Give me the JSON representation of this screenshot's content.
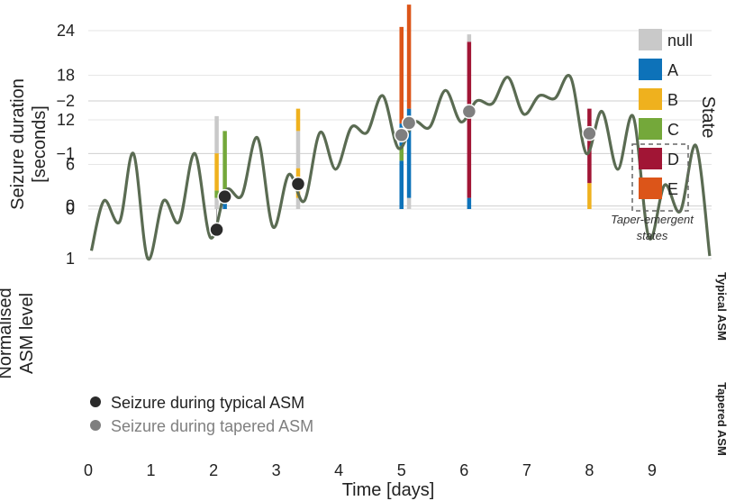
{
  "chart_data": [
    {
      "type": "bar",
      "stacked": true,
      "ylabel": "Seizure duration\n[seconds]",
      "yticks": [
        0,
        6,
        12,
        18,
        24
      ],
      "ylim": [
        -0.5,
        27.5
      ],
      "grid": true,
      "legend_title": "State",
      "legend_placement": "right",
      "categories": [
        "null",
        "A",
        "B",
        "C",
        "D",
        "E"
      ],
      "colors": {
        "null": "#c9c9c9",
        "A": "#0d72b9",
        "B": "#efb11e",
        "C": "#74a83a",
        "D": "#a11535",
        "E": "#dc5519"
      },
      "taper_emergent_states": [
        "D",
        "E"
      ],
      "taper_emergent_label": "Taper-emergent\nstates",
      "seizures": [
        {
          "day": 2.05,
          "segments": [
            {
              "state": "null",
              "value": 1.5
            },
            {
              "state": "C",
              "value": 1.0
            },
            {
              "state": "B",
              "value": 5.0
            },
            {
              "state": "null",
              "value": 5.0
            }
          ]
        },
        {
          "day": 2.18,
          "segments": [
            {
              "state": "A",
              "value": 1.0
            },
            {
              "state": "C",
              "value": 9.5
            }
          ]
        },
        {
          "day": 3.35,
          "segments": [
            {
              "state": "null",
              "value": 1.5
            },
            {
              "state": "B",
              "value": 4.0
            },
            {
              "state": "null",
              "value": 5.0
            },
            {
              "state": "B",
              "value": 3.0
            }
          ]
        },
        {
          "day": 5.0,
          "segments": [
            {
              "state": "A",
              "value": 6.5
            },
            {
              "state": "C",
              "value": 2.0
            },
            {
              "state": "A",
              "value": 3.0
            },
            {
              "state": "E",
              "value": 13.0
            }
          ]
        },
        {
          "day": 5.12,
          "segments": [
            {
              "state": "null",
              "value": 1.5
            },
            {
              "state": "A",
              "value": 12.0
            },
            {
              "state": "E",
              "value": 14.0
            }
          ]
        },
        {
          "day": 6.08,
          "segments": [
            {
              "state": "A",
              "value": 1.5
            },
            {
              "state": "D",
              "value": 21.0
            },
            {
              "state": "null",
              "value": 1.0
            }
          ]
        },
        {
          "day": 8.0,
          "segments": [
            {
              "state": "B",
              "value": 3.5
            },
            {
              "state": "D",
              "value": 10.0
            }
          ]
        }
      ]
    },
    {
      "type": "line",
      "xlabel": "Time [days]",
      "ylabel": "Normalised\nASM level",
      "xticks": [
        0,
        1,
        2,
        3,
        4,
        5,
        6,
        7,
        8,
        9
      ],
      "yticks": [
        -2,
        -1,
        0,
        1
      ],
      "xlim": [
        0,
        9.95
      ],
      "ylim": [
        -2.6,
        1.2
      ],
      "band": {
        "ymin": -1,
        "ymax": 1,
        "color": "#e3e3e3"
      },
      "band_labels": {
        "typical": "Typical ASM",
        "tapered": "Tapered ASM"
      },
      "line_color": "#5a6b52",
      "x": [
        0.05,
        0.25,
        0.5,
        0.72,
        0.95,
        1.2,
        1.45,
        1.7,
        1.95,
        2.2,
        2.45,
        2.7,
        2.95,
        3.2,
        3.45,
        3.7,
        3.95,
        4.2,
        4.45,
        4.7,
        4.95,
        5.2,
        5.45,
        5.7,
        5.95,
        6.2,
        6.45,
        6.7,
        6.95,
        7.2,
        7.45,
        7.7,
        7.95,
        8.2,
        8.45,
        8.7,
        8.95,
        9.2,
        9.45,
        9.7,
        9.92
      ],
      "y": [
        0.85,
        -0.1,
        0.3,
        -1.0,
        1.0,
        -0.1,
        0.3,
        -1.0,
        0.6,
        -0.3,
        -0.2,
        -1.3,
        0.4,
        -0.6,
        -0.1,
        -1.4,
        -0.7,
        -1.5,
        -1.4,
        -2.1,
        -1.1,
        -1.6,
        -1.5,
        -2.2,
        -1.6,
        -2.0,
        -1.95,
        -2.45,
        -1.75,
        -2.1,
        -2.05,
        -2.45,
        -1.0,
        -1.8,
        -0.7,
        -1.7,
        0.6,
        -0.4,
        0.1,
        -1.15,
        0.95
      ],
      "seizures_typical": [
        {
          "x": 2.05,
          "y": 0.45
        },
        {
          "x": 2.18,
          "y": -0.18
        },
        {
          "x": 3.35,
          "y": -0.42
        }
      ],
      "seizures_tapered": [
        {
          "x": 5.0,
          "y": -1.35
        },
        {
          "x": 5.12,
          "y": -1.58
        },
        {
          "x": 6.08,
          "y": -1.8
        },
        {
          "x": 8.0,
          "y": -1.38
        }
      ],
      "marker_colors": {
        "typical": "#2b2b2b",
        "tapered": "#7f7f7f"
      },
      "legend": [
        {
          "label": "Seizure during typical ASM",
          "color": "#2b2b2b"
        },
        {
          "label": "Seizure during tapered ASM",
          "color": "#7f7f7f"
        }
      ]
    }
  ]
}
